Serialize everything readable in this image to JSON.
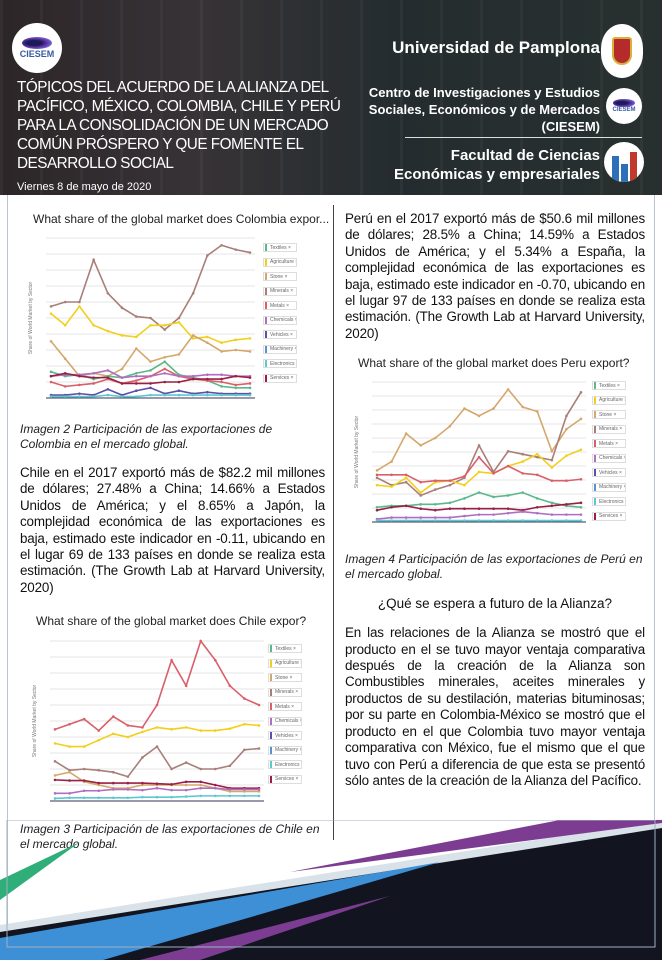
{
  "header": {
    "logo_text": "CIESEM",
    "title": "TÓPICOS DEL ACUERDO DE LA ALIANZA DEL PACÍFICO, MÉXICO, COLOMBIA, CHILE Y PERÚ PARA LA CONSOLIDACIÓN DE UN MERCADO COMÚN PRÓSPERO Y QUE FOMENTE EL DESARROLLO SOCIAL",
    "date": "Viernes 8 de mayo de 2020",
    "university": "Universidad de Pamplona",
    "center": "Centro de Investigaciones y Estudios Sociales, Económicos y de Mercados (CIESEM)",
    "faculty_line1": "Facultad  de Ciencias",
    "faculty_line2": "Económicas y empresariales"
  },
  "left": {
    "chart1_title": "What share of the global market does Colombia expor...",
    "caption2": "Imagen 2 Participación de las exportaciones de Colombia en el mercado global.",
    "chile_text": "Chile en el 2017 exportó más de $82.2 mil millones de dólares; 27.48% a China; 14.66% a Estados Unidos de América; y el 8.65% a Japón, la complejidad económica de las exportaciones es baja, estimado este indicador en -0.11, ubicando en el lugar 69 de 133 países en donde se realiza esta estimación. (The Growth Lab at Harvard University, 2020)",
    "chart3_title": "What share of the global market does Chile expor?",
    "caption3": "Imagen 3 Participación de las exportaciones de Chile en el mercado global."
  },
  "right": {
    "peru_text": "Perú en el 2017 exportó más de $50.6 mil millones de dólares; 28.5% a China; 14.59% a Estados Unidos de América; y el 5.34% a España, la complejidad económica de las exportaciones es baja, estimado este indicador en -0.70, ubicando en el lugar 97 de 133 países en donde se realiza esta estimación. (The Growth Lab at Harvard University, 2020)",
    "chart4_title": "What share of the global market does Peru export?",
    "caption4": "Imagen 4 Participación de las exportaciones de Perú en el mercado global.",
    "question": "¿Qué se espera a futuro de la Alianza?",
    "future_text": "En las relaciones de la Alianza se mostró que el producto en el se tuvo mayor ventaja comparativa después de la creación de la Alianza son Combustibles minerales, aceites minerales y productos de su destilación, materias bituminosas; por su parte en Colombia-México se mostró que el producto en el que Colombia tuvo mayor ventaja comparativa con México, fue el mismo que el que tuvo con Perú a diferencia de que esta se presentó sólo antes de la creación de la Alianza del Pacífico."
  },
  "legend": [
    {
      "label": "Textiles",
      "color": "#5cb88a"
    },
    {
      "label": "Agriculture",
      "color": "#f2cf1a"
    },
    {
      "label": "Stone",
      "color": "#d4a76a"
    },
    {
      "label": "Minerals",
      "color": "#a97e79"
    },
    {
      "label": "Metals",
      "color": "#d9606b"
    },
    {
      "label": "Chemicals",
      "color": "#b06ec0"
    },
    {
      "label": "Vehicles",
      "color": "#5b4fa8"
    },
    {
      "label": "Machinery",
      "color": "#5a8fd0"
    },
    {
      "label": "Electronics",
      "color": "#5cc8d0"
    },
    {
      "label": "Services",
      "color": "#9a1f45"
    }
  ],
  "y_axis_label": "Share of World Market by Sector",
  "charts": {
    "colombia": {
      "ymax": 1.1,
      "series": {
        "Minerals": [
          0.63,
          0.66,
          0.66,
          0.95,
          0.72,
          0.62,
          0.56,
          0.55,
          0.47,
          0.55,
          0.72,
          0.98,
          1.05,
          1.02,
          1.0
        ],
        "Agriculture": [
          0.58,
          0.5,
          0.63,
          0.5,
          0.46,
          0.43,
          0.42,
          0.5,
          0.5,
          0.52,
          0.41,
          0.42,
          0.38,
          0.4,
          0.41
        ],
        "Stone": [
          0.39,
          0.27,
          0.15,
          0.17,
          0.15,
          0.2,
          0.34,
          0.25,
          0.28,
          0.3,
          0.43,
          0.38,
          0.32,
          0.33,
          0.32
        ],
        "Textiles": [
          0.18,
          0.15,
          0.16,
          0.13,
          0.15,
          0.14,
          0.17,
          0.19,
          0.25,
          0.16,
          0.14,
          0.12,
          0.08,
          0.07,
          0.07
        ],
        "Metals": [
          0.11,
          0.08,
          0.09,
          0.1,
          0.13,
          0.1,
          0.12,
          0.15,
          0.2,
          0.15,
          0.13,
          0.12,
          0.11,
          0.09,
          0.1
        ],
        "Chemicals": [
          0.15,
          0.16,
          0.16,
          0.17,
          0.19,
          0.14,
          0.15,
          0.15,
          0.17,
          0.15,
          0.15,
          0.16,
          0.16,
          0.15,
          0.15
        ],
        "Services": [
          0.15,
          0.17,
          0.15,
          0.14,
          0.14,
          0.1,
          0.1,
          0.1,
          0.11,
          0.11,
          0.13,
          0.13,
          0.13,
          0.15,
          0.14
        ],
        "Vehicles": [
          0.02,
          0.02,
          0.03,
          0.02,
          0.06,
          0.02,
          0.05,
          0.07,
          0.03,
          0.05,
          0.03,
          0.04,
          0.03,
          0.03,
          0.03
        ],
        "Electronics": [
          0.01,
          0.01,
          0.01,
          0.01,
          0.02,
          0.01,
          0.01,
          0.02,
          0.02,
          0.02,
          0.02,
          0.02,
          0.02,
          0.02,
          0.02
        ]
      }
    },
    "chile": {
      "ymax": 2.5,
      "series": {
        "Metals": [
          1.12,
          1.2,
          1.28,
          1.1,
          1.32,
          1.18,
          1.15,
          1.5,
          2.2,
          1.8,
          2.5,
          2.2,
          1.8,
          1.6,
          1.5
        ],
        "Agriculture": [
          0.9,
          0.85,
          0.85,
          0.95,
          1.05,
          1.0,
          1.08,
          1.15,
          1.12,
          1.15,
          1.1,
          1.1,
          1.13,
          1.2,
          1.18
        ],
        "Minerals": [
          0.62,
          0.48,
          0.5,
          0.48,
          0.45,
          0.38,
          0.68,
          0.85,
          0.5,
          0.6,
          0.5,
          0.5,
          0.55,
          0.8,
          0.82
        ],
        "Stone": [
          0.4,
          0.45,
          0.3,
          0.25,
          0.2,
          0.2,
          0.25,
          0.25,
          0.25,
          0.25,
          0.25,
          0.2,
          0.15,
          0.15,
          0.15
        ],
        "Services": [
          0.33,
          0.32,
          0.32,
          0.28,
          0.28,
          0.28,
          0.28,
          0.27,
          0.26,
          0.3,
          0.3,
          0.25,
          0.2,
          0.2,
          0.2
        ],
        "Chemicals": [
          0.12,
          0.12,
          0.16,
          0.16,
          0.18,
          0.18,
          0.17,
          0.2,
          0.17,
          0.17,
          0.2,
          0.2,
          0.18,
          0.18,
          0.18
        ],
        "Electronics": [
          0.04,
          0.05,
          0.05,
          0.05,
          0.05,
          0.05,
          0.06,
          0.06,
          0.06,
          0.07,
          0.08,
          0.08,
          0.08,
          0.08,
          0.08
        ]
      }
    },
    "peru": {
      "ymax": 0.95,
      "series": {
        "Stone": [
          0.35,
          0.41,
          0.6,
          0.52,
          0.57,
          0.65,
          0.77,
          0.72,
          0.77,
          0.9,
          0.78,
          0.75,
          0.48,
          0.63,
          0.7
        ],
        "Minerals": [
          0.3,
          0.25,
          0.27,
          0.18,
          0.22,
          0.25,
          0.3,
          0.52,
          0.34,
          0.48,
          0.46,
          0.44,
          0.42,
          0.72,
          0.88
        ],
        "Agriculture": [
          0.25,
          0.24,
          0.3,
          0.2,
          0.27,
          0.28,
          0.25,
          0.34,
          0.33,
          0.38,
          0.41,
          0.46,
          0.37,
          0.45,
          0.49
        ],
        "Metals": [
          0.32,
          0.32,
          0.32,
          0.27,
          0.28,
          0.28,
          0.31,
          0.44,
          0.33,
          0.38,
          0.33,
          0.32,
          0.28,
          0.28,
          0.29
        ],
        "Textiles": [
          0.1,
          0.11,
          0.11,
          0.12,
          0.12,
          0.13,
          0.16,
          0.2,
          0.17,
          0.18,
          0.2,
          0.16,
          0.13,
          0.11,
          0.1
        ],
        "Services": [
          0.08,
          0.1,
          0.11,
          0.09,
          0.08,
          0.09,
          0.09,
          0.09,
          0.09,
          0.09,
          0.08,
          0.1,
          0.11,
          0.12,
          0.13
        ],
        "Chemicals": [
          0.02,
          0.03,
          0.03,
          0.03,
          0.03,
          0.03,
          0.04,
          0.05,
          0.05,
          0.06,
          0.07,
          0.06,
          0.05,
          0.05,
          0.05
        ],
        "Electronics": [
          0.01,
          0.01,
          0.01,
          0.01,
          0.01,
          0.01,
          0.01,
          0.01,
          0.01,
          0.01,
          0.01,
          0.01,
          0.01,
          0.01,
          0.01
        ]
      }
    }
  }
}
